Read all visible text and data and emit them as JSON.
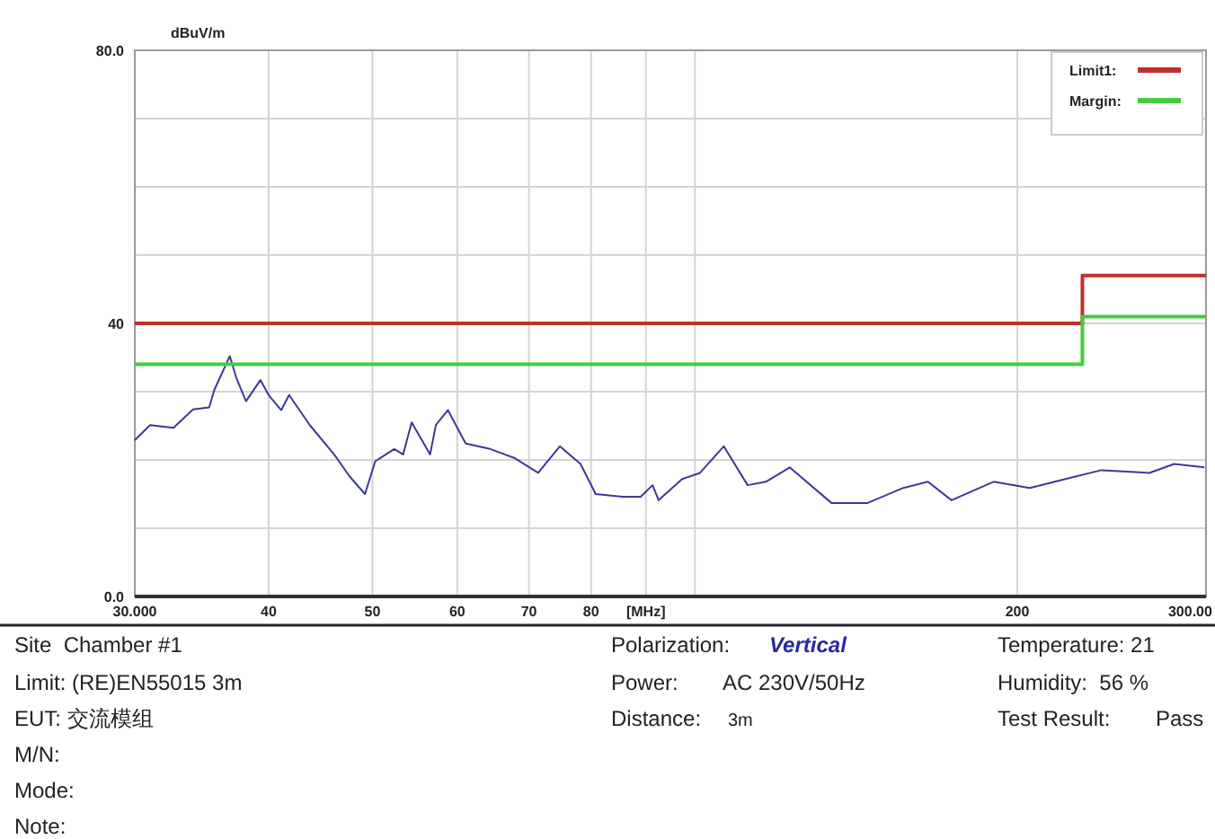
{
  "chart_data": {
    "type": "line",
    "ylabel": "dBuV/m",
    "log": "x",
    "grid": true,
    "legend": "top right",
    "xlim": [
      30,
      300
    ],
    "xticks": [
      {
        "value": 30,
        "label": "30.000"
      },
      40,
      50,
      60,
      70,
      80,
      {
        "value": 90,
        "label": "[MHz]"
      },
      {
        "value": 100,
        "label": null
      },
      200,
      {
        "value": 300,
        "label": "300.00"
      }
    ],
    "ylim": [
      0,
      80
    ],
    "yticks": [
      {
        "value": 0,
        "label": "0.0"
      },
      {
        "value": 10,
        "label": null
      },
      {
        "value": 20,
        "label": null
      },
      {
        "value": 30,
        "label": null
      },
      40,
      {
        "value": 50,
        "label": null
      },
      {
        "value": 60,
        "label": null
      },
      {
        "value": 70,
        "label": null
      },
      {
        "value": 80,
        "label": "80.0"
      }
    ],
    "series": [
      {
        "color": "#3a3a9a",
        "x": [
          30.0,
          31.0,
          32.6,
          34.0,
          35.2,
          35.6,
          36.8,
          37.3,
          38.1,
          39.3,
          40.0,
          41.1,
          41.8,
          43.7,
          46.1,
          47.6,
          49.2,
          50.3,
          52.4,
          53.4,
          54.4,
          56.6,
          57.3,
          58.8,
          61.1,
          64.4,
          67.8,
          71.4,
          74.8,
          78.2,
          80.8,
          85.6,
          89.0,
          91.3,
          92.5,
          97.3,
          101.1,
          106.4,
          112.0,
          116.5,
          122.6,
          134.1,
          145.0,
          156.5,
          165.0,
          173.6,
          190.0,
          205.4,
          221.8,
          239.6,
          265.6,
          280.1,
          299.0
        ],
        "values": [
          22.9,
          25.1,
          24.7,
          27.4,
          27.7,
          30.3,
          35.2,
          32.1,
          28.6,
          31.7,
          29.5,
          27.3,
          29.5,
          25.1,
          20.7,
          17.6,
          15.0,
          19.8,
          21.6,
          20.8,
          25.5,
          20.8,
          25.1,
          27.3,
          22.4,
          21.6,
          20.3,
          18.1,
          22.0,
          19.4,
          15.0,
          14.6,
          14.6,
          16.3,
          14.1,
          17.2,
          18.1,
          22.0,
          16.3,
          16.8,
          18.9,
          13.7,
          13.7,
          15.9,
          16.8,
          14.1,
          16.8,
          15.9,
          17.2,
          18.5,
          18.1,
          19.4,
          18.9
        ]
      },
      {
        "type": "step",
        "name": "Limit1:",
        "color": "#c0302a",
        "x": [
          30,
          230,
          300
        ],
        "values": [
          40,
          47,
          47
        ]
      },
      {
        "type": "step",
        "name": "Margin:",
        "color": "#44cc44",
        "x": [
          30,
          230,
          300
        ],
        "values": [
          34,
          41,
          41
        ]
      }
    ],
    "annotations": [
      "Site  Chamber #1",
      "Limit: (RE)EN55015 3m",
      "EUT: 交流模组",
      "M/N:",
      "Mode:",
      "Note:",
      "Polarization:",
      "Vertical",
      "Power:",
      "AC 230V/50Hz",
      "Distance:",
      "3m",
      "Temperature: 21",
      "Humidity:  56 %",
      "Test Result:",
      "Pass"
    ]
  }
}
